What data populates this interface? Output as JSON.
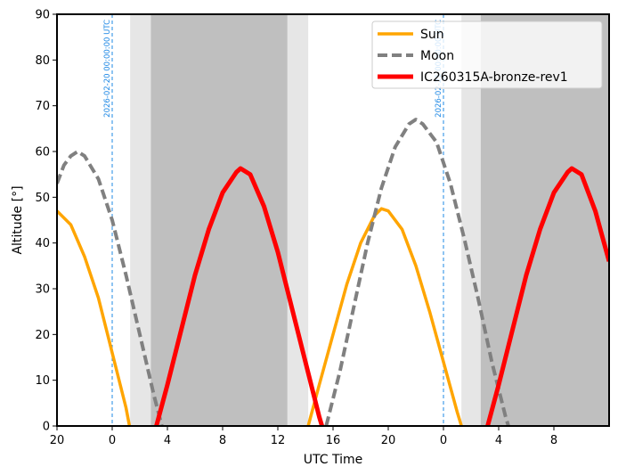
{
  "chart_data": {
    "type": "line",
    "xlabel": "UTC Time",
    "ylabel": "Altitude [°]",
    "ylim": [
      0,
      90
    ],
    "x_unit": "hours from 2026-02-19 20:00 UTC",
    "x_ticks": [
      {
        "h": 0,
        "label": "20"
      },
      {
        "h": 4,
        "label": "0"
      },
      {
        "h": 8,
        "label": "4"
      },
      {
        "h": 12,
        "label": "8"
      },
      {
        "h": 16,
        "label": "12"
      },
      {
        "h": 20,
        "label": "16"
      },
      {
        "h": 24,
        "label": "20"
      },
      {
        "h": 28,
        "label": "0"
      },
      {
        "h": 32,
        "label": "4"
      },
      {
        "h": 36,
        "label": "8"
      }
    ],
    "xlim": [
      0,
      40
    ],
    "y_ticks": [
      0,
      10,
      20,
      30,
      40,
      50,
      60,
      70,
      80,
      90
    ],
    "grid": false,
    "legend_position": "top-right",
    "night_shading": [
      {
        "start": 5.3,
        "end": 6.8,
        "shade": "twilight"
      },
      {
        "start": 6.8,
        "end": 16.7,
        "shade": "night"
      },
      {
        "start": 16.7,
        "end": 18.2,
        "shade": "twilight"
      },
      {
        "start": 29.3,
        "end": 30.7,
        "shade": "twilight"
      },
      {
        "start": 30.7,
        "end": 40.0,
        "shade": "night"
      }
    ],
    "annotations": [
      {
        "x": 4,
        "text": "2026-02-20 00:00:00 UTC"
      },
      {
        "x": 28,
        "text": "2026-02-21 00:00:00 UTC"
      }
    ],
    "series": [
      {
        "name": "Sun",
        "color": "#ffa500",
        "dash": "solid",
        "points": [
          [
            0,
            47
          ],
          [
            1,
            44
          ],
          [
            2,
            37
          ],
          [
            3,
            28
          ],
          [
            4,
            16
          ],
          [
            5,
            4
          ],
          [
            5.25,
            0
          ],
          [
            18.2,
            0
          ],
          [
            19,
            9
          ],
          [
            20,
            20
          ],
          [
            21,
            31
          ],
          [
            22,
            40
          ],
          [
            23,
            46
          ],
          [
            23.5,
            47.5
          ],
          [
            24,
            47
          ],
          [
            25,
            43
          ],
          [
            26,
            35
          ],
          [
            27,
            25
          ],
          [
            28,
            14
          ],
          [
            29,
            3
          ],
          [
            29.3,
            0
          ]
        ]
      },
      {
        "name": "Moon",
        "color": "#808080",
        "dash": "dashed",
        "points": [
          [
            0,
            53
          ],
          [
            0.5,
            57
          ],
          [
            1,
            59
          ],
          [
            1.5,
            60
          ],
          [
            2,
            59
          ],
          [
            3,
            54
          ],
          [
            4,
            45
          ],
          [
            5,
            33
          ],
          [
            6,
            20
          ],
          [
            7,
            7
          ],
          [
            7.6,
            0
          ],
          [
            19.5,
            0
          ],
          [
            20.5,
            12
          ],
          [
            21.5,
            26
          ],
          [
            22.5,
            40
          ],
          [
            23.5,
            52
          ],
          [
            24.5,
            61
          ],
          [
            25.5,
            66
          ],
          [
            26,
            67
          ],
          [
            26.5,
            66
          ],
          [
            27.5,
            62
          ],
          [
            28.5,
            53
          ],
          [
            29.5,
            41
          ],
          [
            30.5,
            28
          ],
          [
            31.5,
            14
          ],
          [
            32.5,
            2
          ],
          [
            32.7,
            0
          ]
        ]
      },
      {
        "name": "IC260315A-bronze-rev1",
        "color": "#ff0000",
        "dash": "solid",
        "points": [
          [
            7.2,
            0
          ],
          [
            8,
            9
          ],
          [
            9,
            21
          ],
          [
            10,
            33
          ],
          [
            11,
            43
          ],
          [
            12,
            51
          ],
          [
            13,
            55.5
          ],
          [
            13.3,
            56.3
          ],
          [
            14,
            55
          ],
          [
            15,
            48
          ],
          [
            16,
            38
          ],
          [
            17,
            26
          ],
          [
            18,
            14
          ],
          [
            19,
            2
          ],
          [
            19.2,
            0
          ],
          [
            31.2,
            0
          ],
          [
            32,
            9
          ],
          [
            33,
            21
          ],
          [
            34,
            33
          ],
          [
            35,
            43
          ],
          [
            36,
            51
          ],
          [
            37,
            55.5
          ],
          [
            37.3,
            56.3
          ],
          [
            38,
            55
          ],
          [
            39,
            47
          ],
          [
            40,
            36
          ]
        ]
      }
    ]
  }
}
